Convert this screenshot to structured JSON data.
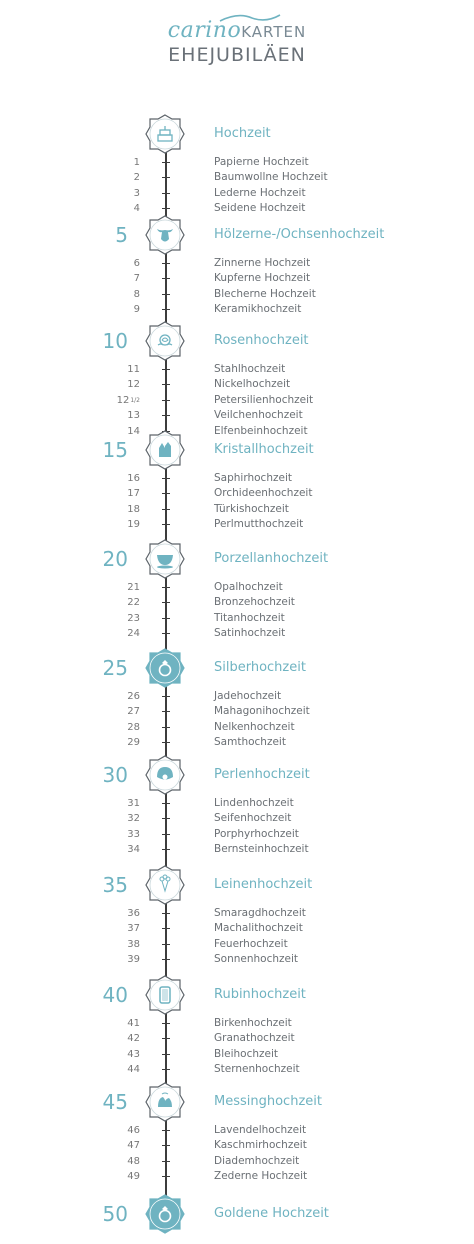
{
  "header": {
    "logo_carino": "carino",
    "logo_karten": "KARTEN",
    "title": "EHEJUBILÄEN"
  },
  "colors": {
    "accent": "#6fb3c1",
    "line": "#3c3c3c",
    "text": "#6a6f74"
  },
  "milestones": [
    {
      "num": "",
      "label": "Hochzeit",
      "icon": "wedding-cake-icon",
      "filled": false
    },
    {
      "num": "5",
      "label": "Hölzerne-/Ochsenhochzeit",
      "icon": "ox-head-icon",
      "filled": false
    },
    {
      "num": "10",
      "label": "Rosenhochzeit",
      "icon": "rose-icon",
      "filled": false
    },
    {
      "num": "15",
      "label": "Kristallhochzeit",
      "icon": "crystal-icon",
      "filled": false
    },
    {
      "num": "20",
      "label": "Porzellanhochzeit",
      "icon": "teacup-icon",
      "filled": false
    },
    {
      "num": "25",
      "label": "Silberhochzeit",
      "icon": "ring-icon",
      "filled": true
    },
    {
      "num": "30",
      "label": "Perlenhochzeit",
      "icon": "pearl-shell-icon",
      "filled": false
    },
    {
      "num": "35",
      "label": "Leinenhochzeit",
      "icon": "flower-bouquet-icon",
      "filled": false
    },
    {
      "num": "40",
      "label": "Rubinhochzeit",
      "icon": "ruby-gem-icon",
      "filled": false
    },
    {
      "num": "45",
      "label": "Messinghochzeit",
      "icon": "bells-icon",
      "filled": false
    },
    {
      "num": "50",
      "label": "Goldene Hochzeit",
      "icon": "ring-icon",
      "filled": true
    }
  ],
  "groups": [
    [
      {
        "num": "1",
        "frac": "",
        "label": "Papierne Hochzeit"
      },
      {
        "num": "2",
        "frac": "",
        "label": "Baumwollne Hochzeit"
      },
      {
        "num": "3",
        "frac": "",
        "label": "Lederne Hochzeit"
      },
      {
        "num": "4",
        "frac": "",
        "label": "Seidene Hochzeit"
      }
    ],
    [
      {
        "num": "6",
        "frac": "",
        "label": "Zinnerne Hochzeit"
      },
      {
        "num": "7",
        "frac": "",
        "label": "Kupferne Hochzeit"
      },
      {
        "num": "8",
        "frac": "",
        "label": "Blecherne Hochzeit"
      },
      {
        "num": "9",
        "frac": "",
        "label": "Keramikhochzeit"
      }
    ],
    [
      {
        "num": "11",
        "frac": "",
        "label": "Stahlhochzeit"
      },
      {
        "num": "12",
        "frac": "",
        "label": "Nickelhochzeit"
      },
      {
        "num": "12",
        "frac": "1/2",
        "label": "Petersilienhochzeit"
      },
      {
        "num": "13",
        "frac": "",
        "label": "Veilchenhochzeit"
      },
      {
        "num": "14",
        "frac": "",
        "label": "Elfenbeinhochzeit"
      }
    ],
    [
      {
        "num": "16",
        "frac": "",
        "label": "Saphirhochzeit"
      },
      {
        "num": "17",
        "frac": "",
        "label": "Orchideenhochzeit"
      },
      {
        "num": "18",
        "frac": "",
        "label": "Türkishochzeit"
      },
      {
        "num": "19",
        "frac": "",
        "label": "Perlmutthochzeit"
      }
    ],
    [
      {
        "num": "21",
        "frac": "",
        "label": "Opalhochzeit"
      },
      {
        "num": "22",
        "frac": "",
        "label": "Bronzehochzeit"
      },
      {
        "num": "23",
        "frac": "",
        "label": "Titanhochzeit"
      },
      {
        "num": "24",
        "frac": "",
        "label": "Satinhochzeit"
      }
    ],
    [
      {
        "num": "26",
        "frac": "",
        "label": "Jadehochzeit"
      },
      {
        "num": "27",
        "frac": "",
        "label": "Mahagonihochzeit"
      },
      {
        "num": "28",
        "frac": "",
        "label": "Nelkenhochzeit"
      },
      {
        "num": "29",
        "frac": "",
        "label": "Samthochzeit"
      }
    ],
    [
      {
        "num": "31",
        "frac": "",
        "label": "Lindenhochzeit"
      },
      {
        "num": "32",
        "frac": "",
        "label": "Seifenhochzeit"
      },
      {
        "num": "33",
        "frac": "",
        "label": "Porphyrhochzeit"
      },
      {
        "num": "34",
        "frac": "",
        "label": "Bernsteinhochzeit"
      }
    ],
    [
      {
        "num": "36",
        "frac": "",
        "label": "Smaragdhochzeit"
      },
      {
        "num": "37",
        "frac": "",
        "label": "Machalithochzeit"
      },
      {
        "num": "38",
        "frac": "",
        "label": "Feuerhochzeit"
      },
      {
        "num": "39",
        "frac": "",
        "label": "Sonnenhochzeit"
      }
    ],
    [
      {
        "num": "41",
        "frac": "",
        "label": "Birkenhochzeit"
      },
      {
        "num": "42",
        "frac": "",
        "label": "Granathochzeit"
      },
      {
        "num": "43",
        "frac": "",
        "label": "Bleihochzeit"
      },
      {
        "num": "44",
        "frac": "",
        "label": "Sternenhochzeit"
      }
    ],
    [
      {
        "num": "46",
        "frac": "",
        "label": "Lavendelhochzeit"
      },
      {
        "num": "47",
        "frac": "",
        "label": "Kaschmirhochzeit"
      },
      {
        "num": "48",
        "frac": "",
        "label": "Diademhochzeit"
      },
      {
        "num": "49",
        "frac": "",
        "label": "Zederne Hochzeit"
      }
    ]
  ]
}
